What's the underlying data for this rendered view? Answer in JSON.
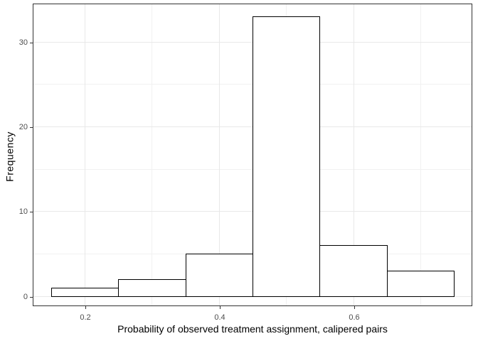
{
  "chart_data": {
    "type": "bar",
    "subtype": "histogram",
    "title": "",
    "xlabel": "Probability of observed treatment assignment, calipered pairs",
    "ylabel": "Frequency",
    "bin_edges": [
      0.15,
      0.25,
      0.35,
      0.45,
      0.55,
      0.65,
      0.75
    ],
    "values": [
      1,
      2,
      5,
      33,
      6,
      3
    ],
    "x_ticks": {
      "values": [
        0.2,
        0.4,
        0.6
      ],
      "labels": [
        "0.2",
        "0.4",
        "0.6"
      ]
    },
    "y_ticks": {
      "values": [
        0,
        10,
        20,
        30
      ],
      "labels": [
        "0",
        "10",
        "20",
        "30"
      ]
    },
    "x_minor_gridlines": [
      0.3,
      0.5,
      0.7
    ],
    "y_minor_gridlines": [
      5,
      15,
      25
    ],
    "xlim": [
      0.124,
      0.776
    ],
    "ylim": [
      -1.1,
      34.4
    ],
    "grid": "major+minor",
    "legend": false,
    "colors": {
      "bar_fill": "#ffffff",
      "bar_stroke": "#000000",
      "grid_major": "#e8e8e8",
      "grid_minor": "#f1f1f1",
      "panel_border": "#333333",
      "tick_mark": "#333333",
      "tick_label": "#4d4d4d",
      "axis_title": "#000000",
      "background": "#ffffff"
    }
  }
}
